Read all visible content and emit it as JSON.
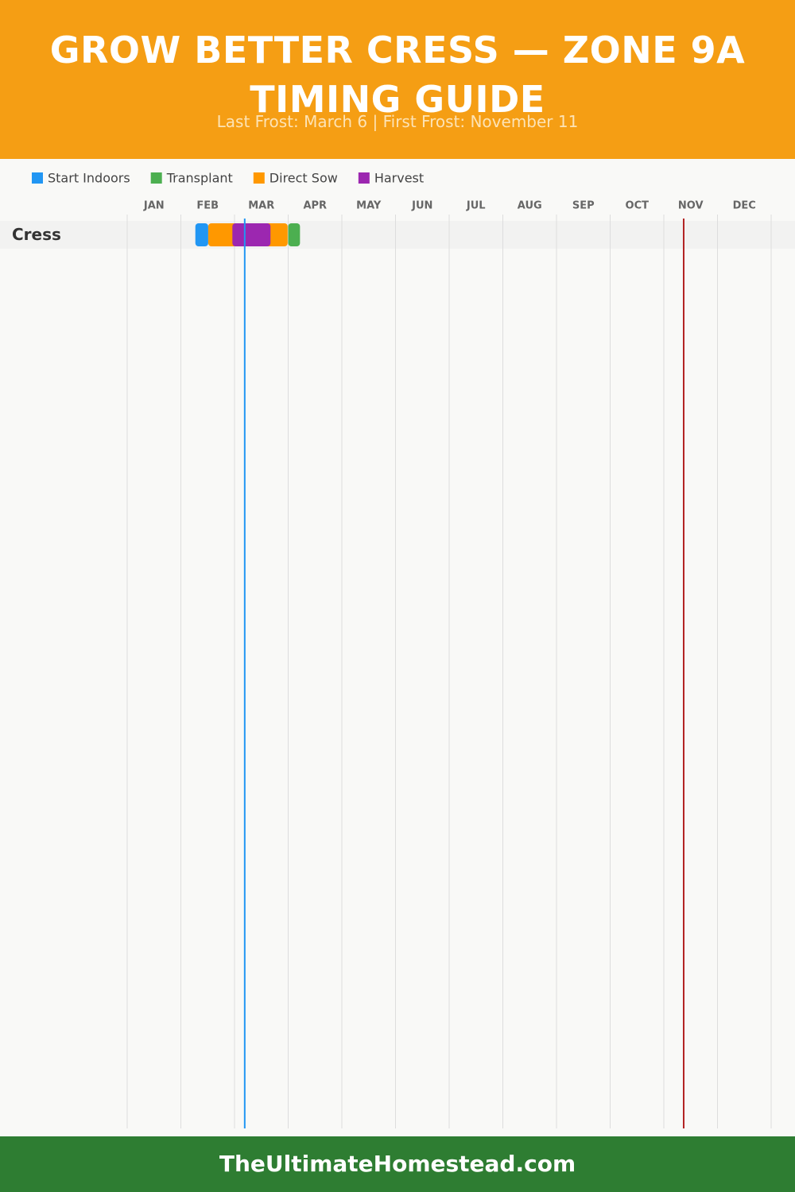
{
  "header": {
    "title": "GROW BETTER CRESS — ZONE 9A TIMING GUIDE",
    "subtitle": "Last Frost: March 6 | First Frost: November 11"
  },
  "chart_data": {
    "type": "gantt",
    "categories": [
      "JAN",
      "FEB",
      "MAR",
      "APR",
      "MAY",
      "JUN",
      "JUL",
      "AUG",
      "SEP",
      "OCT",
      "NOV",
      "DEC"
    ],
    "xlim": [
      0,
      12
    ],
    "xticks": [
      0,
      1,
      2,
      3,
      4,
      5,
      6,
      7,
      8,
      9,
      10,
      11,
      12
    ],
    "grid": true,
    "rows": [
      "Cress"
    ],
    "series": [
      {
        "name": "Start Indoors",
        "color": "#2196f3",
        "values": [
          [
            1.27,
            1.51
          ]
        ]
      },
      {
        "name": "Transplant",
        "color": "#4caf50",
        "values": [
          [
            3.0,
            3.22
          ]
        ]
      },
      {
        "name": "Direct Sow",
        "color": "#ff9800",
        "values": [
          [
            1.51,
            2.99
          ]
        ]
      },
      {
        "name": "Harvest",
        "color": "#9c27b0",
        "values": [
          [
            1.96,
            2.67
          ]
        ]
      }
    ],
    "frost_lines": [
      {
        "value": 2.19,
        "color": "#2196f3"
      },
      {
        "value": 10.37,
        "color": "#b22222"
      }
    ]
  },
  "footer": {
    "text": "TheUltimateHomestead.com"
  }
}
